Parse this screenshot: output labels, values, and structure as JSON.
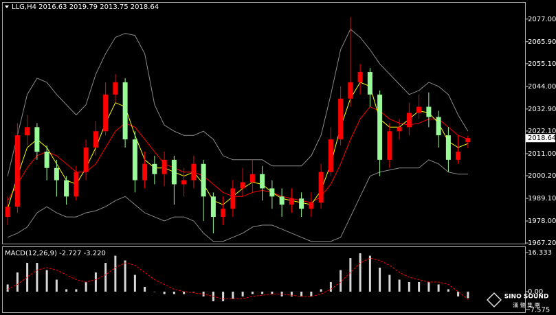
{
  "header": {
    "symbol": "LLG,H4"
  },
  "chart_data": [
    {
      "type": "candlestick",
      "up_color": "#ff0000",
      "down_color": "#98fb98",
      "open": [
        1980,
        1985,
        2020,
        2024,
        2012,
        2004,
        1998,
        1990,
        2002,
        2014,
        2022,
        2040,
        2046,
        2018,
        1998,
        2006,
        2001,
        2008,
        1996,
        1998,
        2006,
        1990,
        1980,
        1984,
        1994,
        1997,
        2001,
        1994,
        1990,
        1986,
        1989,
        1984,
        1987,
        2002,
        2018,
        2038,
        2046,
        2051,
        2040,
        2008,
        2022,
        2024,
        2031,
        2034,
        2029,
        2020,
        2008,
        2016.63
      ],
      "high": [
        1990,
        2026,
        2030,
        2026,
        2015,
        2008,
        2000,
        2005,
        2018,
        2027,
        2046,
        2050,
        2048,
        2022,
        2012,
        2010,
        2012,
        2010,
        2004,
        2010,
        2008,
        1992,
        1990,
        1998,
        2004,
        2008,
        2005,
        1998,
        1994,
        1994,
        1992,
        1992,
        2006,
        2024,
        2044,
        2078,
        2055,
        2053,
        2042,
        2026,
        2028,
        2036,
        2040,
        2041,
        2032,
        2024,
        2020,
        2019.79
      ],
      "low": [
        1976,
        1982,
        2015,
        2008,
        1998,
        1990,
        1986,
        1988,
        1998,
        2010,
        2020,
        2036,
        2014,
        1992,
        1994,
        1996,
        1995,
        1986,
        1990,
        1994,
        1978,
        1972,
        1976,
        1980,
        1990,
        1992,
        1988,
        1984,
        1980,
        1982,
        1980,
        1980,
        1984,
        2000,
        2015,
        2034,
        2040,
        2034,
        2000,
        2004,
        2018,
        2020,
        2028,
        2024,
        2014,
        2002,
        2006,
        2013.75
      ],
      "close": [
        1985,
        2020,
        2024,
        2012,
        2004,
        1998,
        1990,
        2002,
        2014,
        2022,
        2040,
        2046,
        2018,
        1998,
        2006,
        2001,
        2008,
        1996,
        1998,
        2006,
        1990,
        1980,
        1984,
        1994,
        1997,
        2001,
        1994,
        1990,
        1986,
        1989,
        1984,
        1987,
        2002,
        2018,
        2038,
        2046,
        2051,
        2040,
        2008,
        2022,
        2024,
        2031,
        2034,
        2029,
        2020,
        2008,
        2012,
        2018.64
      ],
      "overlays": [
        {
          "color": "#8c8c8c",
          "values": [
            2000,
            2020,
            2040,
            2048,
            2046,
            2040,
            2035,
            2030,
            2035,
            2050,
            2060,
            2068,
            2070,
            2069,
            2060,
            2035,
            2025,
            2022,
            2020,
            2020,
            2022,
            2018,
            2010,
            2008,
            2008,
            2008,
            2008,
            2005,
            2005,
            2005,
            2005,
            2010,
            2020,
            2040,
            2062,
            2072,
            2068,
            2062,
            2055,
            2050,
            2045,
            2040,
            2042,
            2046,
            2044,
            2040,
            2030,
            2022
          ]
        },
        {
          "color": "#8c8c8c",
          "values": [
            1970,
            1972,
            1975,
            1982,
            1985,
            1982,
            1980,
            1980,
            1982,
            1983,
            1985,
            1988,
            1990,
            1986,
            1982,
            1980,
            1978,
            1980,
            1980,
            1978,
            1972,
            1968,
            1968,
            1970,
            1972,
            1975,
            1976,
            1976,
            1974,
            1972,
            1970,
            1968,
            1968,
            1968,
            1970,
            1980,
            1990,
            2000,
            2002,
            2003,
            2004,
            2004,
            2004,
            2008,
            2006,
            2002,
            2001,
            2001
          ]
        },
        {
          "color": "#ff0000",
          "values": [
            1988,
            1996,
            2004,
            2010,
            2012,
            2010,
            2006,
            2002,
            2002,
            2006,
            2014,
            2022,
            2026,
            2024,
            2018,
            2012,
            2006,
            2004,
            2002,
            2002,
            2000,
            1996,
            1992,
            1990,
            1990,
            1992,
            1993,
            1992,
            1990,
            1989,
            1988,
            1987,
            1990,
            1996,
            2006,
            2018,
            2028,
            2034,
            2032,
            2028,
            2026,
            2025,
            2026,
            2028,
            2028,
            2024,
            2020,
            2018
          ]
        },
        {
          "color": "#ffff00",
          "values": [
            1984,
            2000,
            2014,
            2018,
            2014,
            2006,
            1998,
            1996,
            2004,
            2014,
            2026,
            2036,
            2034,
            2020,
            2008,
            2004,
            2004,
            2002,
            2000,
            2002,
            1996,
            1988,
            1986,
            1990,
            1994,
            1997,
            1996,
            1992,
            1989,
            1988,
            1987,
            1986,
            1993,
            2006,
            2024,
            2038,
            2046,
            2044,
            2028,
            2024,
            2024,
            2028,
            2032,
            2031,
            2026,
            2017,
            2014,
            2016
          ]
        }
      ],
      "ylim": [
        1966.9,
        2085.0
      ],
      "yticks": [
        {
          "value": 2077,
          "label": "2077.00"
        },
        {
          "value": 2065.9,
          "label": "2065.90"
        },
        {
          "value": 2055.1,
          "label": "2055.10"
        },
        {
          "value": 2044,
          "label": "2044.00"
        },
        {
          "value": 2032.9,
          "label": "2032.90"
        },
        {
          "value": 2022.1,
          "label": "2022.10"
        },
        {
          "value": 2011,
          "label": "2011.00"
        },
        {
          "value": 2000.2,
          "label": "2000.20"
        },
        {
          "value": 1989.1,
          "label": "1989.10"
        },
        {
          "value": 1978,
          "label": "1978.00"
        },
        {
          "value": 1967.2,
          "label": "1967.20"
        }
      ]
    },
    {
      "type": "macd",
      "title": "MACD(12,26,9)",
      "histogram": {
        "color": "#d8d8d8",
        "values": [
          3,
          8,
          12,
          12,
          9,
          5,
          1,
          1,
          4,
          8,
          12,
          15,
          13,
          7,
          2,
          0,
          -1,
          -1,
          -1,
          0,
          -2,
          -4,
          -4,
          -3,
          -2,
          -1,
          -1,
          -1,
          -2,
          -2,
          -2,
          -2,
          1,
          4,
          9,
          14,
          16,
          15,
          10,
          7,
          5,
          4,
          4,
          4,
          3,
          1,
          -2,
          -2.727
        ]
      },
      "signal": {
        "color": "#ff0000",
        "values": [
          1,
          3,
          6,
          9,
          10,
          9,
          7,
          5,
          4,
          5,
          7,
          10,
          12,
          11,
          8,
          5,
          3,
          1,
          0,
          -0.5,
          -1,
          -2,
          -3,
          -3,
          -3,
          -2,
          -1.5,
          -1,
          -1,
          -1.5,
          -2,
          -2,
          -1,
          1,
          4,
          8,
          12,
          14,
          13,
          11,
          8,
          6,
          5,
          4,
          4,
          3,
          0,
          -3.22
        ],
        "value_labels_last": "-3.220"
      },
      "ylim": [
        -8.6,
        18.6
      ],
      "yticks": [
        16.333,
        {
          "value": 0,
          "label": "0.00"
        },
        -7.575
      ]
    }
  ],
  "watermark": {
    "brand": "SINO SOUND",
    "subtitle": "漢 聲 集 團"
  }
}
